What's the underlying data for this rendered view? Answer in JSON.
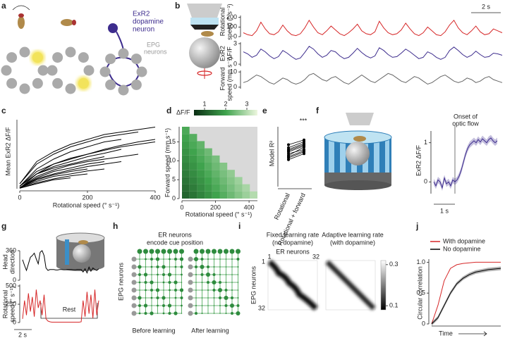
{
  "panel_labels": [
    "a",
    "b",
    "c",
    "d",
    "e",
    "f",
    "g",
    "h",
    "i",
    "j"
  ],
  "panel_a": {
    "dopamine_label": [
      "ExR2",
      "dopamine",
      "neuron"
    ],
    "epg_label": [
      "EPG",
      "neurons"
    ]
  },
  "panel_b": {
    "scalebar": "2 s"
  },
  "panel_f": {
    "annotation": [
      "Onset of",
      "optic flow"
    ],
    "scalebar": "1 s"
  },
  "panel_g": {
    "annotation": "Rest",
    "scalebar": "2 s"
  },
  "panel_h": {
    "title": [
      "ER neurons",
      "encode cue position"
    ],
    "y_label": "EPG neurons",
    "captions": [
      "Before learning",
      "After learning"
    ]
  },
  "panel_i": {
    "titles": [
      [
        "Fixed learning rate",
        "(no dopamine)"
      ],
      [
        "Adaptive learning rate",
        "(with dopamine)"
      ]
    ],
    "x_label": "ER neurons",
    "y_label": "EPG neurons",
    "index_ticks": [
      1,
      32
    ],
    "colorbar": {
      "ticks": [
        0.3,
        0.1
      ],
      "lim": [
        0.08,
        0.32
      ]
    }
  },
  "chart_data": [
    {
      "type": "line",
      "ylabel": [
        "Rotational",
        "speed (° s⁻¹)"
      ],
      "ylim": [
        0,
        220
      ],
      "yticks": [
        0,
        100,
        200
      ],
      "color": "#d62728",
      "values": [
        40,
        20,
        10,
        60,
        150,
        80,
        30,
        20,
        50,
        120,
        60,
        20,
        10,
        30,
        90,
        170,
        100,
        40,
        20,
        60,
        110,
        70,
        30,
        10,
        40,
        80,
        130,
        60,
        30,
        20,
        50,
        160,
        90,
        40,
        20,
        30,
        70,
        140,
        80,
        30,
        10,
        40,
        100,
        60,
        20,
        10,
        50,
        120,
        170,
        90,
        40,
        20,
        60,
        110,
        50,
        20,
        30,
        80,
        60,
        40
      ]
    },
    {
      "type": "line",
      "ylabel": [
        "ExR2",
        "ΔF/F"
      ],
      "ylim": [
        -0.3,
        3.2
      ],
      "yticks": [
        0,
        3
      ],
      "color": "#3d2c8d",
      "values": [
        1.8,
        1.5,
        1.0,
        1.3,
        2.2,
        1.8,
        1.2,
        0.8,
        1.1,
        2.0,
        1.6,
        1.1,
        0.7,
        0.9,
        1.7,
        2.6,
        2.2,
        1.5,
        1.0,
        1.3,
        2.0,
        1.8,
        1.2,
        0.8,
        1.0,
        1.6,
        2.3,
        1.7,
        1.2,
        0.9,
        1.2,
        2.4,
        2.0,
        1.4,
        1.0,
        1.1,
        1.6,
        2.2,
        1.8,
        1.3,
        0.8,
        1.0,
        1.8,
        1.5,
        1.0,
        0.7,
        1.0,
        2.0,
        2.5,
        2.0,
        1.4,
        1.0,
        1.3,
        1.9,
        1.4,
        1.0,
        1.1,
        1.6,
        1.5,
        1.3
      ]
    },
    {
      "type": "line",
      "ylabel": [
        "Forward",
        "speed (mm s⁻¹)"
      ],
      "ylim": [
        -1,
        11
      ],
      "yticks": [
        0,
        10
      ],
      "color": "#666666",
      "values": [
        3,
        4,
        6,
        8,
        7,
        5,
        3,
        2,
        4,
        6,
        5,
        3,
        2,
        3,
        5,
        8,
        9,
        7,
        5,
        4,
        6,
        7,
        5,
        3,
        2,
        4,
        6,
        8,
        6,
        4,
        3,
        5,
        7,
        9,
        8,
        6,
        4,
        3,
        5,
        7,
        6,
        4,
        2,
        3,
        5,
        7,
        8,
        6,
        4,
        3,
        4,
        6,
        5,
        3,
        4,
        6,
        7,
        5,
        4,
        3
      ]
    },
    {
      "type": "line",
      "ylabel": "Mean ExR2 ΔF/F",
      "xlabel": "Rotational speed (° s⁻¹)",
      "x": [
        0,
        50,
        100,
        150,
        200,
        250,
        300,
        350,
        400
      ],
      "xlim": [
        0,
        400
      ],
      "xticks": [
        0,
        200,
        400
      ],
      "ylim": [
        0,
        1.4
      ],
      "color": "#000000",
      "series": [
        {
          "values": [
            0.1,
            0.55,
            0.75,
            0.9,
            1.0,
            1.1,
            1.15,
            1.2,
            1.25
          ]
        },
        {
          "values": [
            0.1,
            0.5,
            0.7,
            0.85,
            0.95,
            1.05,
            1.1,
            1.15,
            null
          ]
        },
        {
          "values": [
            0.05,
            0.4,
            0.6,
            0.75,
            0.85,
            0.95,
            1.0,
            null,
            null
          ]
        },
        {
          "values": [
            0.05,
            0.35,
            0.5,
            0.6,
            0.7,
            0.78,
            0.85,
            0.9,
            0.95
          ]
        },
        {
          "values": [
            0.05,
            0.3,
            0.45,
            0.55,
            0.65,
            0.72,
            0.8,
            null,
            null
          ]
        },
        {
          "values": [
            0.05,
            0.3,
            0.42,
            0.5,
            0.58,
            0.65,
            null,
            null,
            null
          ]
        },
        {
          "values": [
            0.02,
            0.25,
            0.38,
            0.48,
            0.55,
            0.6,
            0.65,
            0.7,
            null
          ]
        },
        {
          "values": [
            0.02,
            0.22,
            0.35,
            0.42,
            0.5,
            0.55,
            null,
            null,
            null
          ]
        },
        {
          "values": [
            0.02,
            0.2,
            0.3,
            0.38,
            0.45,
            0.5,
            0.55,
            null,
            null
          ]
        },
        {
          "values": [
            0.02,
            0.18,
            0.28,
            0.35,
            0.4,
            null,
            null,
            null,
            null
          ]
        },
        {
          "values": [
            0.02,
            0.15,
            0.25,
            0.3,
            0.36,
            0.4,
            null,
            null,
            null
          ]
        },
        {
          "values": [
            0.01,
            0.12,
            0.2,
            0.26,
            0.3,
            null,
            null,
            null,
            null
          ]
        },
        {
          "values": [
            0.01,
            0.1,
            0.18,
            0.22,
            null,
            null,
            null,
            null,
            null
          ]
        },
        {
          "values": [
            0.01,
            0.3,
            0.5,
            0.62,
            0.7,
            0.8,
            0.88,
            0.95,
            1.0
          ]
        }
      ]
    },
    {
      "type": "heatmap",
      "xlabel": "Rotational speed (° s⁻¹)",
      "ylabel": "Forward speed (mm s⁻¹)",
      "xlim": [
        0,
        450
      ],
      "ylim": [
        0,
        19
      ],
      "xticks": [
        0,
        200,
        400
      ],
      "yticks": [
        0,
        5,
        10,
        15
      ],
      "x_bins": [
        0,
        45,
        90,
        135,
        180,
        225,
        270,
        315,
        360,
        405,
        450
      ],
      "y_bins": [
        0,
        1.9,
        3.8,
        5.7,
        7.6,
        9.5,
        11.4,
        13.3,
        15.2,
        17.1,
        19
      ],
      "colorbar": {
        "label": "ΔF/F",
        "ticks": [
          1,
          2,
          3
        ],
        "clim": [
          0.5,
          3.5
        ],
        "colors": [
          "#0b2e14",
          "#3fa34d",
          "#eef7df"
        ]
      },
      "z": [
        [
          1.2,
          1.4,
          1.6,
          1.8,
          2.0,
          2.2,
          2.4,
          2.6,
          2.8,
          3.0
        ],
        [
          1.3,
          1.5,
          1.7,
          1.9,
          2.1,
          2.3,
          2.5,
          2.7,
          2.9,
          null
        ],
        [
          1.4,
          1.6,
          1.8,
          2.0,
          2.2,
          2.4,
          2.6,
          2.8,
          null,
          null
        ],
        [
          1.5,
          1.7,
          1.9,
          2.1,
          2.3,
          2.5,
          2.7,
          null,
          null,
          null
        ],
        [
          1.6,
          1.8,
          2.0,
          2.2,
          2.4,
          2.6,
          null,
          null,
          null,
          null
        ],
        [
          1.7,
          1.9,
          2.1,
          2.3,
          2.5,
          null,
          null,
          null,
          null,
          null
        ],
        [
          1.8,
          2.0,
          2.2,
          2.4,
          null,
          null,
          null,
          null,
          null,
          null
        ],
        [
          1.9,
          2.1,
          2.3,
          null,
          null,
          null,
          null,
          null,
          null,
          null
        ],
        [
          2.0,
          2.2,
          null,
          null,
          null,
          null,
          null,
          null,
          null,
          null
        ],
        [
          2.1,
          null,
          null,
          null,
          null,
          null,
          null,
          null,
          null,
          null
        ]
      ]
    },
    {
      "type": "paired",
      "ylabel": "Model R²",
      "annotation": "***",
      "categories": [
        "Rotational",
        "Rotational + forward"
      ],
      "ylim": [
        0,
        1
      ],
      "color": "#000000",
      "series": [
        {
          "values": [
            0.45,
            0.55
          ]
        },
        {
          "values": [
            0.5,
            0.6
          ]
        },
        {
          "values": [
            0.55,
            0.62
          ]
        },
        {
          "values": [
            0.6,
            0.7
          ]
        },
        {
          "values": [
            0.62,
            0.72
          ]
        },
        {
          "values": [
            0.65,
            0.75
          ]
        },
        {
          "values": [
            0.58,
            0.68
          ]
        },
        {
          "values": [
            0.7,
            0.78
          ]
        },
        {
          "values": [
            0.52,
            0.66
          ]
        },
        {
          "values": [
            0.48,
            0.58
          ]
        }
      ]
    },
    {
      "type": "line",
      "ylabel": "ExR2 ΔF/F",
      "ylim": [
        -0.3,
        1.3
      ],
      "yticks": [
        0,
        1
      ],
      "xlim": [
        -1,
        2
      ],
      "x": [
        -1,
        -0.9,
        -0.8,
        -0.7,
        -0.6,
        -0.5,
        -0.4,
        -0.3,
        -0.2,
        -0.1,
        0,
        0.1,
        0.2,
        0.3,
        0.4,
        0.5,
        0.6,
        0.7,
        0.8,
        0.9,
        1,
        1.1,
        1.2,
        1.3,
        1.4,
        1.5,
        1.6,
        1.7,
        1.8,
        1.9,
        2
      ],
      "series": [
        {
          "color": "#3d2c8d",
          "values": [
            0,
            -0.1,
            0.05,
            0,
            -0.15,
            0.1,
            -0.05,
            0,
            -0.1,
            0.05,
            0,
            0.05,
            0.15,
            0.3,
            0.5,
            0.7,
            0.85,
            0.95,
            1,
            1.05,
            1,
            1.08,
            1.02,
            1.1,
            1.05,
            1,
            1.08,
            1.12,
            1.05,
            1,
            1.05
          ],
          "error": [
            0.08,
            0.08,
            0.08,
            0.08,
            0.08,
            0.08,
            0.08,
            0.08,
            0.08,
            0.08,
            0.08,
            0.08,
            0.08,
            0.08,
            0.08,
            0.08,
            0.08,
            0.08,
            0.08,
            0.08,
            0.08,
            0.08,
            0.08,
            0.08,
            0.08,
            0.08,
            0.08,
            0.08,
            0.08,
            0.08,
            0.08
          ]
        }
      ]
    },
    {
      "type": "line",
      "ylabel": [
        "Head",
        "direction"
      ],
      "ylim": [
        0,
        360
      ],
      "yticks": [
        0,
        360
      ],
      "color": "#000000",
      "values": [
        250,
        180,
        120,
        200,
        280,
        300,
        330,
        260,
        200,
        340,
        360,
        300,
        150,
        120,
        130,
        130,
        130,
        125,
        125,
        130,
        130,
        128,
        128,
        130,
        130,
        130,
        128,
        128,
        130,
        130,
        130,
        100,
        140,
        90,
        160,
        110,
        150,
        130,
        120,
        140
      ]
    },
    {
      "type": "line",
      "ylabel": [
        "Rotational",
        "speed (° s⁻¹)"
      ],
      "ylim": [
        0,
        520
      ],
      "yticks": [
        0,
        250,
        500
      ],
      "color": "#d62728",
      "values": [
        50,
        300,
        100,
        400,
        150,
        350,
        80,
        450,
        200,
        300,
        100,
        380,
        50,
        20,
        10,
        5,
        5,
        5,
        5,
        5,
        5,
        5,
        5,
        5,
        5,
        5,
        5,
        5,
        5,
        5,
        10,
        300,
        80,
        420,
        120,
        380,
        60,
        450,
        100,
        300
      ]
    },
    {
      "type": "line",
      "ylabel": "Circular correlation",
      "xlabel": "Time",
      "ylim": [
        0,
        1.05
      ],
      "yticks": [
        0,
        0.5,
        {
          "value": 1,
          "label": "1.0"
        }
      ],
      "series": [
        {
          "name": "With dopamine",
          "color": "#d62728",
          "values": [
            0,
            0.3,
            0.7,
            0.9,
            0.96,
            0.98,
            0.99,
            1,
            1,
            1,
            1,
            1
          ]
        },
        {
          "name": "No dopamine",
          "color": "#000000",
          "values": [
            0,
            0.1,
            0.3,
            0.5,
            0.65,
            0.74,
            0.8,
            0.84,
            0.86,
            0.88,
            0.89,
            0.9
          ],
          "error": [
            0.03,
            0.03,
            0.03,
            0.03,
            0.03,
            0.03,
            0.03,
            0.03,
            0.03,
            0.03,
            0.03,
            0.03
          ]
        }
      ]
    }
  ]
}
